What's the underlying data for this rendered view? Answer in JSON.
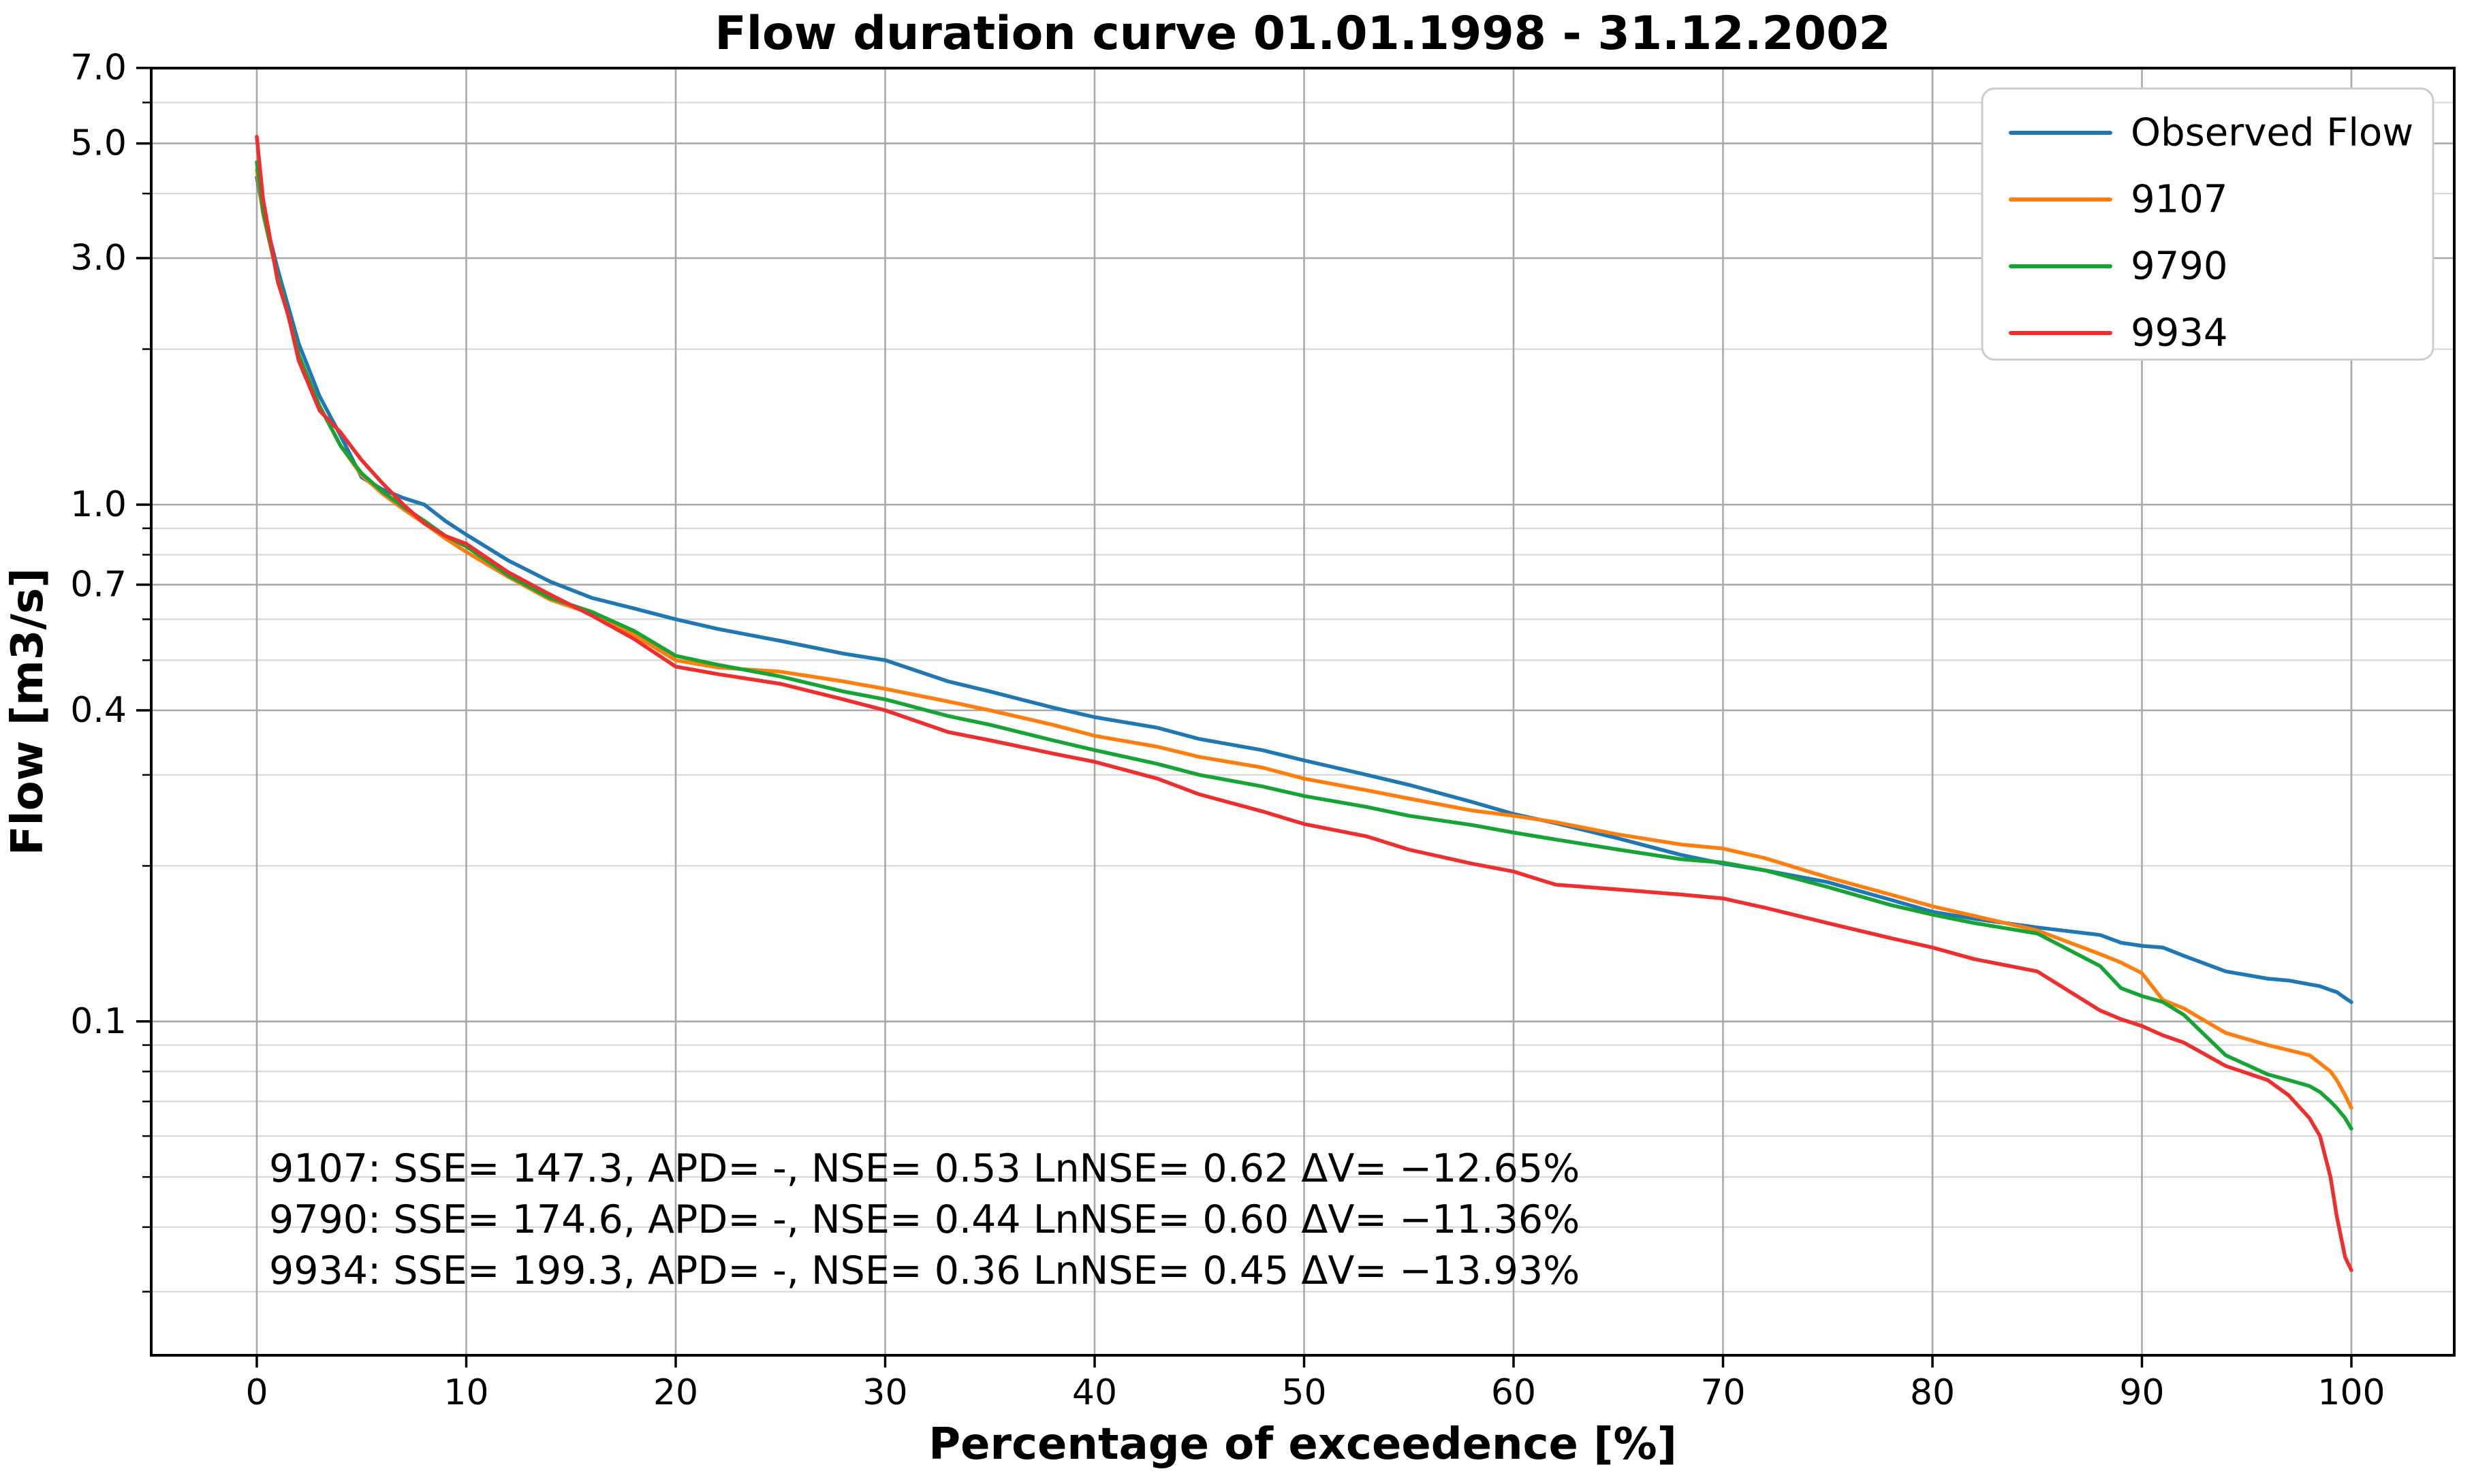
{
  "chart_data": {
    "type": "line",
    "title": "Flow duration curve 01.01.1998 - 31.12.2002",
    "xlabel": "Percentage of exceedence [%]",
    "ylabel": "Flow [m3/s]",
    "yscale": "log",
    "grid": true,
    "legend_position": "upper right",
    "xlim": [
      -5,
      105
    ],
    "ylim": [
      0.0227,
      7.0
    ],
    "x_ticks": [
      0,
      10,
      20,
      30,
      40,
      50,
      60,
      70,
      80,
      90,
      100
    ],
    "x_tick_labels": [
      "0",
      "10",
      "20",
      "30",
      "40",
      "50",
      "60",
      "70",
      "80",
      "90",
      "100"
    ],
    "y_major_ticks": [
      7.0,
      5.0,
      3.0,
      1.0,
      0.7,
      0.4,
      0.1
    ],
    "y_tick_labels": [
      "7.0",
      "5.0",
      "3.0",
      "1.0",
      "0.7",
      "0.4",
      "0.1"
    ],
    "y_minor_gridlines": [
      6,
      4,
      2,
      0.9,
      0.8,
      0.6,
      0.5,
      0.3,
      0.2,
      0.09,
      0.08,
      0.07,
      0.06,
      0.05,
      0.04,
      0.03
    ],
    "x": [
      0,
      0.3,
      1,
      1.5,
      2,
      3,
      4,
      5,
      6,
      7,
      8,
      9,
      10,
      12,
      14,
      16,
      18,
      20,
      22,
      25,
      28,
      30,
      33,
      35,
      38,
      40,
      43,
      45,
      48,
      50,
      53,
      55,
      58,
      60,
      62,
      65,
      68,
      70,
      72,
      75,
      78,
      80,
      82,
      85,
      88,
      89,
      90,
      91,
      92,
      94,
      96,
      97,
      98,
      98.5,
      99,
      99.3,
      99.7,
      100
    ],
    "series": [
      {
        "name": "Observed Flow",
        "color": "#1f77b4",
        "values": [
          4.3,
          3.7,
          2.85,
          2.42,
          2.05,
          1.62,
          1.36,
          1.13,
          1.07,
          1.03,
          1.0,
          0.93,
          0.875,
          0.78,
          0.71,
          0.66,
          0.63,
          0.6,
          0.575,
          0.545,
          0.515,
          0.5,
          0.455,
          0.435,
          0.405,
          0.388,
          0.37,
          0.352,
          0.335,
          0.32,
          0.3,
          0.287,
          0.266,
          0.252,
          0.242,
          0.226,
          0.21,
          0.202,
          0.196,
          0.186,
          0.172,
          0.163,
          0.158,
          0.152,
          0.147,
          0.142,
          0.14,
          0.139,
          0.134,
          0.125,
          0.121,
          0.12,
          0.118,
          0.117,
          0.115,
          0.114,
          0.111,
          0.109
        ]
      },
      {
        "name": "9107",
        "color": "#ff7f0e",
        "values": [
          4.45,
          3.65,
          2.75,
          2.32,
          1.95,
          1.55,
          1.3,
          1.14,
          1.05,
          0.98,
          0.92,
          0.86,
          0.81,
          0.725,
          0.655,
          0.615,
          0.56,
          0.5,
          0.484,
          0.475,
          0.455,
          0.44,
          0.416,
          0.4,
          0.375,
          0.357,
          0.34,
          0.325,
          0.31,
          0.295,
          0.28,
          0.27,
          0.256,
          0.25,
          0.243,
          0.23,
          0.22,
          0.216,
          0.207,
          0.19,
          0.176,
          0.167,
          0.16,
          0.15,
          0.135,
          0.13,
          0.124,
          0.11,
          0.106,
          0.095,
          0.09,
          0.088,
          0.086,
          0.083,
          0.08,
          0.077,
          0.072,
          0.068
        ]
      },
      {
        "name": "9790",
        "color": "#16a434",
        "values": [
          4.6,
          3.7,
          2.75,
          2.33,
          1.95,
          1.55,
          1.3,
          1.15,
          1.06,
          0.99,
          0.93,
          0.87,
          0.83,
          0.73,
          0.66,
          0.62,
          0.57,
          0.51,
          0.49,
          0.465,
          0.435,
          0.42,
          0.39,
          0.375,
          0.35,
          0.335,
          0.315,
          0.3,
          0.285,
          0.273,
          0.26,
          0.25,
          0.24,
          0.232,
          0.225,
          0.215,
          0.206,
          0.203,
          0.196,
          0.182,
          0.168,
          0.161,
          0.155,
          0.148,
          0.128,
          0.116,
          0.112,
          0.109,
          0.103,
          0.086,
          0.079,
          0.077,
          0.075,
          0.073,
          0.07,
          0.068,
          0.065,
          0.062
        ]
      },
      {
        "name": "9934",
        "color": "#ef2e2e",
        "values": [
          5.15,
          3.9,
          2.7,
          2.33,
          1.9,
          1.52,
          1.38,
          1.22,
          1.1,
          1.0,
          0.92,
          0.87,
          0.84,
          0.74,
          0.67,
          0.61,
          0.55,
          0.486,
          0.47,
          0.45,
          0.42,
          0.4,
          0.363,
          0.35,
          0.33,
          0.318,
          0.295,
          0.275,
          0.255,
          0.241,
          0.228,
          0.215,
          0.202,
          0.195,
          0.184,
          0.18,
          0.176,
          0.173,
          0.166,
          0.155,
          0.145,
          0.139,
          0.132,
          0.125,
          0.105,
          0.101,
          0.098,
          0.094,
          0.091,
          0.082,
          0.077,
          0.072,
          0.065,
          0.06,
          0.05,
          0.042,
          0.035,
          0.033
        ]
      }
    ],
    "legend": [
      "Observed Flow",
      "9107",
      "9790",
      "9934"
    ],
    "annotation": {
      "lines": [
        "9107: SSE= 147.3, APD= -, NSE= 0.53 LnNSE= 0.62 ΔV= −12.65%",
        "9790: SSE= 174.6, APD= -, NSE= 0.44 LnNSE= 0.60 ΔV= −11.36%",
        "9934: SSE= 199.3, APD= -, NSE= 0.36 LnNSE= 0.45 ΔV= −13.93%"
      ]
    },
    "stats": [
      {
        "id": "9107",
        "SSE": 147.3,
        "APD": "-",
        "NSE": 0.53,
        "LnNSE": 0.62,
        "dV_percent": -12.65
      },
      {
        "id": "9790",
        "SSE": 174.6,
        "APD": "-",
        "NSE": 0.44,
        "LnNSE": 0.6,
        "dV_percent": -11.36
      },
      {
        "id": "9934",
        "SSE": 199.3,
        "APD": "-",
        "NSE": 0.36,
        "LnNSE": 0.45,
        "dV_percent": -13.93
      }
    ],
    "style": {
      "background": "#ffffff",
      "major_grid_color": "#a8a8a8",
      "minor_grid_color": "#d4d4d4",
      "spine_color": "#000000",
      "legend_border_color": "#cccccc",
      "legend_fill": "#ffffff",
      "text_color": "#000000"
    }
  }
}
